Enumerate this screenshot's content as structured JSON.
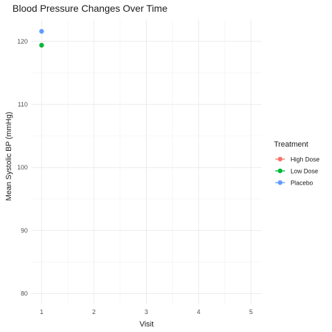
{
  "chart_data": {
    "type": "scatter",
    "title": "Blood Pressure Changes Over Time",
    "xlabel": "Visit",
    "ylabel": "Mean Systolic BP (mmHg)",
    "x_ticks": [
      1,
      2,
      3,
      4,
      5
    ],
    "y_ticks": [
      80,
      90,
      100,
      110,
      120
    ],
    "xlim": [
      0.8,
      5.2
    ],
    "ylim": [
      78.3,
      123.5
    ],
    "grid": true,
    "legend": {
      "title": "Treatment",
      "position": "right"
    },
    "series": [
      {
        "name": "High Dose",
        "color": "#F8766D",
        "points": [
          {
            "x": 1,
            "y": 119.4
          }
        ]
      },
      {
        "name": "Low Dose",
        "color": "#00BA38",
        "points": [
          {
            "x": 1,
            "y": 119.4
          }
        ]
      },
      {
        "name": "Placebo",
        "color": "#619CFF",
        "points": [
          {
            "x": 1,
            "y": 121.6
          }
        ]
      }
    ]
  }
}
